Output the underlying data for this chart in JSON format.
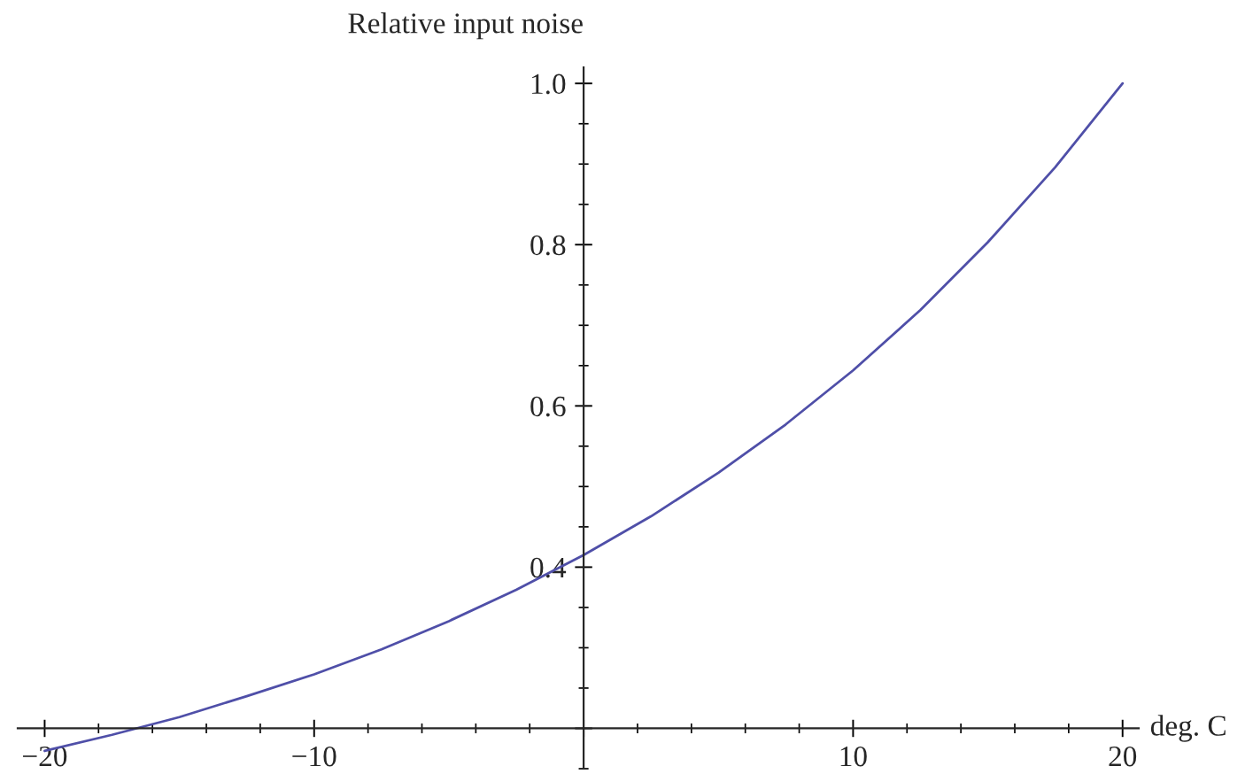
{
  "chart_data": {
    "type": "line",
    "xlabel": "deg. C",
    "ylabel": "Relative input noise",
    "xlim": [
      -21,
      20.6
    ],
    "ylim": [
      0.15,
      1.02
    ],
    "xticks": [
      {
        "value": -20,
        "label": "−20"
      },
      {
        "value": -10,
        "label": "−10"
      },
      {
        "value": 0,
        "label": null
      },
      10,
      20
    ],
    "yticks": [
      {
        "value": 0.2,
        "label": null
      },
      0.4,
      0.6,
      0.8,
      {
        "value": 1.0,
        "label": "1.0"
      }
    ],
    "grid": false,
    "series": [
      {
        "color": "#4f4fa8",
        "x": [
          -20,
          -17.5,
          -15,
          -12.5,
          -10,
          -7.5,
          -5,
          -2.5,
          0,
          2.5,
          5,
          7.5,
          10,
          12.5,
          15,
          17.5,
          20
        ],
        "values": [
          0.172,
          0.192,
          0.214,
          0.24,
          0.267,
          0.298,
          0.333,
          0.372,
          0.415,
          0.463,
          0.517,
          0.577,
          0.644,
          0.719,
          0.803,
          0.896,
          1.0
        ]
      }
    ]
  }
}
